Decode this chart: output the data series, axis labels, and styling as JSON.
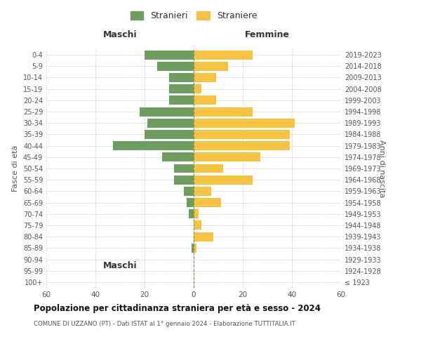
{
  "age_groups": [
    "100+",
    "95-99",
    "90-94",
    "85-89",
    "80-84",
    "75-79",
    "70-74",
    "65-69",
    "60-64",
    "55-59",
    "50-54",
    "45-49",
    "40-44",
    "35-39",
    "30-34",
    "25-29",
    "20-24",
    "15-19",
    "10-14",
    "5-9",
    "0-4"
  ],
  "birth_years": [
    "≤ 1923",
    "1924-1928",
    "1929-1933",
    "1934-1938",
    "1939-1943",
    "1944-1948",
    "1949-1953",
    "1954-1958",
    "1959-1963",
    "1964-1968",
    "1969-1973",
    "1974-1978",
    "1979-1983",
    "1984-1988",
    "1989-1993",
    "1994-1998",
    "1999-2003",
    "2004-2008",
    "2009-2013",
    "2014-2018",
    "2019-2023"
  ],
  "maschi": [
    0,
    0,
    0,
    1,
    0,
    0,
    2,
    3,
    4,
    8,
    8,
    13,
    33,
    20,
    19,
    22,
    10,
    10,
    10,
    15,
    20
  ],
  "femmine": [
    0,
    0,
    0,
    1,
    8,
    3,
    2,
    11,
    7,
    24,
    12,
    27,
    39,
    39,
    41,
    24,
    9,
    3,
    9,
    14,
    24
  ],
  "male_color": "#6e9e5e",
  "female_color": "#f5c242",
  "title": "Popolazione per cittadinanza straniera per età e sesso - 2024",
  "subtitle": "COMUNE DI UZZANO (PT) - Dati ISTAT al 1° gennaio 2024 - Elaborazione TUTTITALIA.IT",
  "xlabel_left": "Maschi",
  "xlabel_right": "Femmine",
  "ylabel_left": "Fasce di età",
  "ylabel_right": "Anni di nascita",
  "legend_male": "Stranieri",
  "legend_female": "Straniere",
  "xlim": 60,
  "bar_height": 0.8,
  "background_color": "#ffffff",
  "grid_color": "#cccccc",
  "text_color": "#555555"
}
